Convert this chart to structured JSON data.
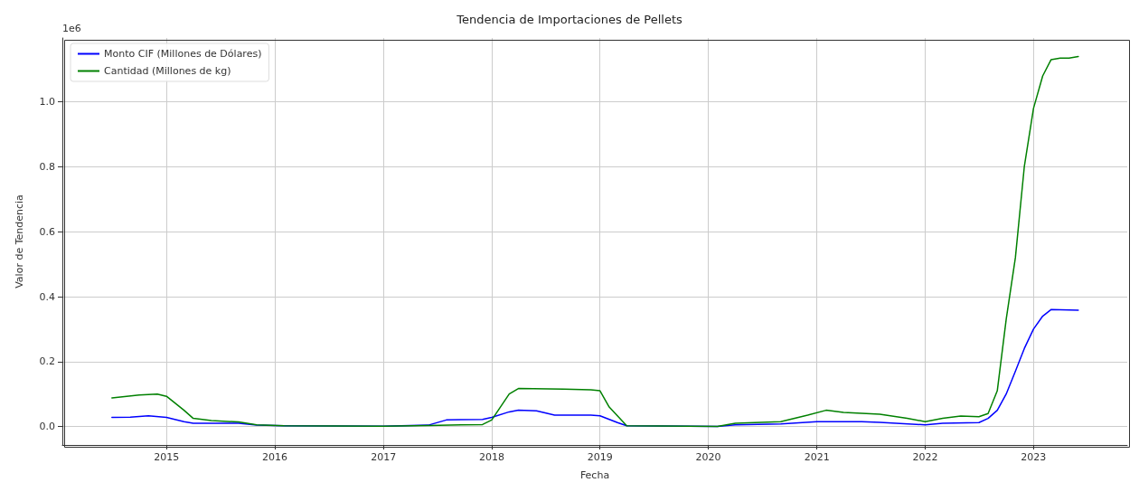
{
  "chart_data": {
    "type": "line",
    "title": "Tendencia de Importaciones de Pellets",
    "xlabel": "Fecha",
    "ylabel": "Valor de Tendencia",
    "annotations": [
      "1e6"
    ],
    "xlim": [
      "2014-01-15",
      "2023-11-13"
    ],
    "xticks": [
      {
        "value": "2015-01-01",
        "label": "2015"
      },
      {
        "value": "2016-01-01",
        "label": "2016"
      },
      {
        "value": "2017-01-01",
        "label": "2017"
      },
      {
        "value": "2018-01-01",
        "label": "2018"
      },
      {
        "value": "2019-01-01",
        "label": "2019"
      },
      {
        "value": "2020-01-01",
        "label": "2020"
      },
      {
        "value": "2021-01-01",
        "label": "2021"
      },
      {
        "value": "2022-01-01",
        "label": "2022"
      },
      {
        "value": "2023-01-01",
        "label": "2023"
      }
    ],
    "ylim": [
      -0.057,
      1.197
    ],
    "yticks": [
      {
        "value": 0,
        "label": "0.0"
      },
      0.2,
      0.4,
      0.6,
      0.8,
      {
        "value": 1,
        "label": "1.0"
      }
    ],
    "grid": true,
    "legend": "top left",
    "marker": "none",
    "line_style": "solid",
    "series": [
      {
        "name": "Monto CIF (Millones de Dólares)",
        "color": "#0000ff",
        "x": [
          "2014-07",
          "2014-09",
          "2014-11",
          "2015-01",
          "2015-03",
          "2015-04",
          "2015-09",
          "2015-11",
          "2016-02",
          "2017-01",
          "2017-06",
          "2017-08",
          "2017-12",
          "2018-01",
          "2018-03",
          "2018-04",
          "2018-06",
          "2018-08",
          "2018-12",
          "2019-01",
          "2019-03",
          "2019-04",
          "2020-02",
          "2020-04",
          "2020-09",
          "2021-01",
          "2021-06",
          "2021-08",
          "2022-01",
          "2022-03",
          "2022-07",
          "2022-08",
          "2022-09",
          "2022-10",
          "2022-11",
          "2022-12",
          "2023-01",
          "2023-02",
          "2023-03",
          "2023-06"
        ],
        "values": [
          0.028,
          0.029,
          0.033,
          0.028,
          0.015,
          0.01,
          0.01,
          0.004,
          0.002,
          0.001,
          0.004,
          0.02,
          0.022,
          0.028,
          0.045,
          0.05,
          0.048,
          0.035,
          0.035,
          0.033,
          0.012,
          0.002,
          0,
          0.005,
          0.008,
          0.015,
          0.015,
          0.013,
          0.005,
          0.01,
          0.012,
          0.025,
          0.05,
          0.1,
          0.17,
          0.24,
          0.3,
          0.34,
          0.36,
          0.358
        ]
      },
      {
        "name": "Cantidad (Millones de kg)",
        "color": "#008000",
        "x": [
          "2014-07",
          "2014-10",
          "2014-12",
          "2015-01",
          "2015-03",
          "2015-04",
          "2015-06",
          "2015-09",
          "2015-11",
          "2016-02",
          "2017-01",
          "2017-06",
          "2017-12",
          "2018-01",
          "2018-03",
          "2018-04",
          "2018-09",
          "2018-12",
          "2019-01",
          "2019-02",
          "2019-04",
          "2020-02",
          "2020-04",
          "2020-09",
          "2020-12",
          "2021-02",
          "2021-04",
          "2021-08",
          "2021-11",
          "2022-01",
          "2022-03",
          "2022-05",
          "2022-07",
          "2022-08",
          "2022-09",
          "2022-10",
          "2022-11",
          "2022-12",
          "2023-01",
          "2023-02",
          "2023-03",
          "2023-04",
          "2023-05",
          "2023-06"
        ],
        "values": [
          0.088,
          0.097,
          0.1,
          0.093,
          0.05,
          0.025,
          0.018,
          0.014,
          0.005,
          0.002,
          0.001,
          0.003,
          0.006,
          0.02,
          0.1,
          0.117,
          0.115,
          0.113,
          0.11,
          0.06,
          0.002,
          0,
          0.01,
          0.015,
          0.035,
          0.05,
          0.043,
          0.038,
          0.025,
          0.015,
          0.025,
          0.032,
          0.03,
          0.04,
          0.11,
          0.33,
          0.52,
          0.8,
          0.98,
          1.08,
          1.13,
          1.135,
          1.135,
          1.14
        ]
      }
    ]
  }
}
